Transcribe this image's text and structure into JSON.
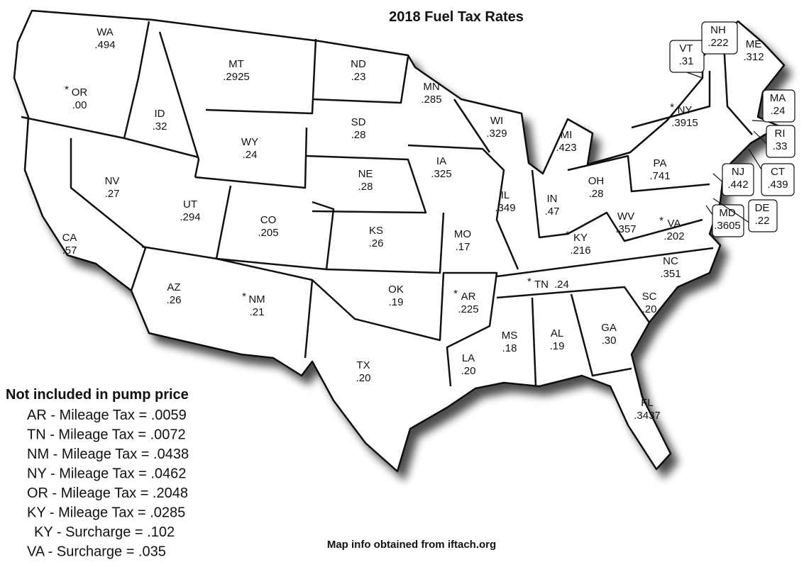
{
  "title": "2018  Fuel Tax Rates",
  "footer": "Map info obtained from iftach.org",
  "states": [
    {
      "abbr": "WA",
      "rate": ".494"
    },
    {
      "abbr": "OR",
      "rate": ".00",
      "note": "*",
      "note_color": "#d01010"
    },
    {
      "abbr": "CA",
      "rate": ".57"
    },
    {
      "abbr": "NV",
      "rate": ".27"
    },
    {
      "abbr": "ID",
      "rate": ".32"
    },
    {
      "abbr": "MT",
      "rate": ".2925"
    },
    {
      "abbr": "WY",
      "rate": ".24"
    },
    {
      "abbr": "UT",
      "rate": ".294"
    },
    {
      "abbr": "CO",
      "rate": ".205"
    },
    {
      "abbr": "AZ",
      "rate": ".26"
    },
    {
      "abbr": "NM",
      "rate": ".21",
      "note": "*",
      "note_color": "#d01010"
    },
    {
      "abbr": "ND",
      "rate": ".23"
    },
    {
      "abbr": "SD",
      "rate": ".28"
    },
    {
      "abbr": "NE",
      "rate": ".28"
    },
    {
      "abbr": "KS",
      "rate": ".26"
    },
    {
      "abbr": "OK",
      "rate": ".19"
    },
    {
      "abbr": "TX",
      "rate": ".20"
    },
    {
      "abbr": "MN",
      "rate": ".285"
    },
    {
      "abbr": "IA",
      "rate": ".325"
    },
    {
      "abbr": "MO",
      "rate": ".17"
    },
    {
      "abbr": "AR",
      "rate": ".225",
      "note": "*",
      "note_color": "#d01010"
    },
    {
      "abbr": "LA",
      "rate": ".20"
    },
    {
      "abbr": "WI",
      "rate": ".329"
    },
    {
      "abbr": "IL",
      "rate": ".349"
    },
    {
      "abbr": "MI",
      "rate": ".423"
    },
    {
      "abbr": "IN",
      "rate": ".47"
    },
    {
      "abbr": "OH",
      "rate": ".28"
    },
    {
      "abbr": "KY",
      "rate": ".216",
      "note": "*",
      "note_color": "#1a1aa8"
    },
    {
      "abbr": "TN",
      "rate": ".24",
      "note": "*",
      "note_color": "#1a1aa8"
    },
    {
      "abbr": "MS",
      "rate": ".18"
    },
    {
      "abbr": "AL",
      "rate": ".19"
    },
    {
      "abbr": "GA",
      "rate": ".30"
    },
    {
      "abbr": "FL",
      "rate": ".3437"
    },
    {
      "abbr": "SC",
      "rate": ".20"
    },
    {
      "abbr": "NC",
      "rate": ".351"
    },
    {
      "abbr": "WV",
      "rate": ".357"
    },
    {
      "abbr": "VA",
      "rate": ".202",
      "note": "*",
      "note_color": "#d01010"
    },
    {
      "abbr": "PA",
      "rate": ".741"
    },
    {
      "abbr": "NY",
      "rate": ".3915",
      "note": "*",
      "note_color": "#1a1aa8"
    },
    {
      "abbr": "VT",
      "rate": ".31"
    },
    {
      "abbr": "NH",
      "rate": ".222"
    },
    {
      "abbr": "ME",
      "rate": ".312"
    },
    {
      "abbr": "MA",
      "rate": ".24"
    },
    {
      "abbr": "RI",
      "rate": ".33"
    },
    {
      "abbr": "CT",
      "rate": ".439"
    },
    {
      "abbr": "NJ",
      "rate": ".442"
    },
    {
      "abbr": "MD",
      "rate": ".3605"
    },
    {
      "abbr": "DE",
      "rate": ".22"
    }
  ],
  "legend": {
    "heading": "Not included in pump price",
    "items": [
      {
        "text": "AR - Mileage Tax = .0059",
        "color": "#d01010"
      },
      {
        "text": "TN - Mileage Tax = .0072",
        "color": "#1a1aa8"
      },
      {
        "text": "NM - Mileage Tax = .0438",
        "color": "#d01010"
      },
      {
        "text": "NY - Mileage Tax = .0462",
        "color": "#1a1aa8"
      },
      {
        "text": "OR - Mileage Tax = .2048",
        "color": "#d01010"
      },
      {
        "text": "KY - Mileage Tax = .0285",
        "color": "#1a1aa8"
      },
      {
        "text": "KY - Surcharge = .102",
        "color": "#1a1aa8"
      },
      {
        "text": "VA - Surcharge = .035",
        "color": "#d01010"
      }
    ]
  }
}
